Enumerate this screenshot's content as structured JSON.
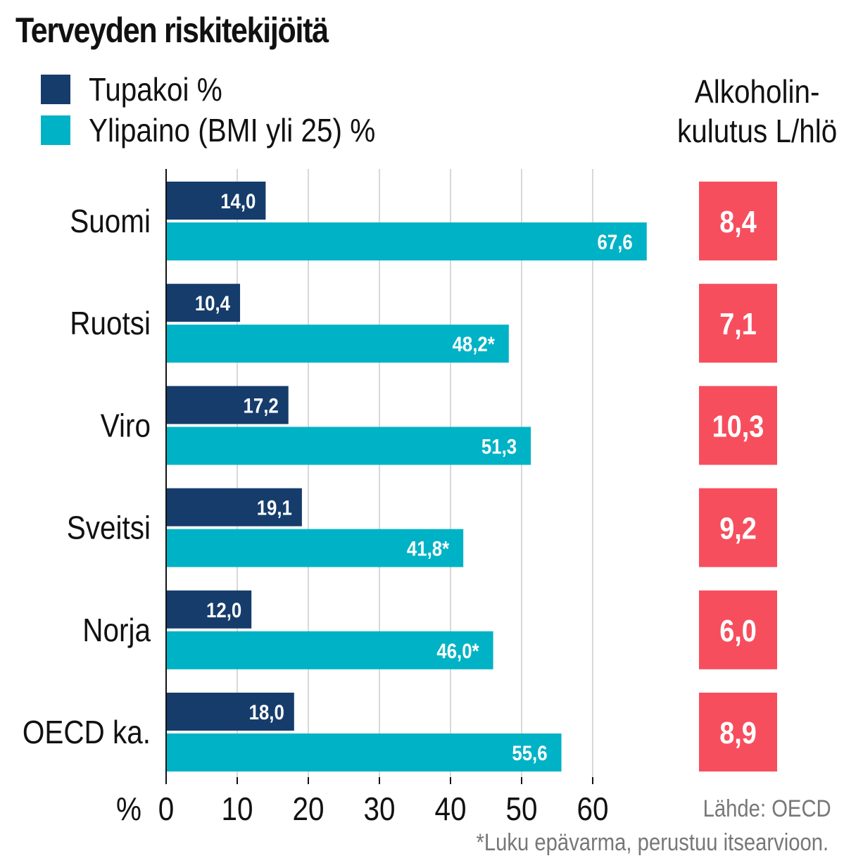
{
  "title": "Terveyden riskitekijöitä",
  "legend": [
    {
      "label": "Tupakoi %",
      "color": "#163c6b"
    },
    {
      "label": "Ylipaino (BMI yli 25) %",
      "color": "#00b2c5"
    }
  ],
  "alcohol_title": [
    "Alkoholin-",
    "kulutus L/hlö"
  ],
  "colors": {
    "smoke": "#163c6b",
    "overweight": "#00b2c5",
    "alcohol": "#f74e5d",
    "grid": "#cccccc",
    "axis": "#111111"
  },
  "chart_data": {
    "type": "bar",
    "orientation": "horizontal",
    "title": "Terveyden riskitekijöitä",
    "categories": [
      "Suomi",
      "Ruotsi",
      "Viro",
      "Sveitsi",
      "Norja",
      "OECD ka."
    ],
    "series": [
      {
        "name": "Tupakoi %",
        "values": [
          14.0,
          10.4,
          17.2,
          19.1,
          12.0,
          18.0
        ],
        "labels": [
          "14,0",
          "10,4",
          "17,2",
          "19,1",
          "12,0",
          "18,0"
        ]
      },
      {
        "name": "Ylipaino (BMI yli 25) %",
        "values": [
          67.6,
          48.2,
          51.3,
          41.8,
          46.0,
          55.6
        ],
        "labels": [
          "67,6",
          "48,2*",
          "51,3",
          "41,8*",
          "46,0*",
          "55,6"
        ]
      }
    ],
    "alcohol": {
      "name": "Alkoholinkulutus L/hlö",
      "values": [
        8.4,
        7.1,
        10.3,
        9.2,
        6.0,
        8.9
      ],
      "labels": [
        "8,4",
        "7,1",
        "10,3",
        "9,2",
        "6,0",
        "8,9"
      ]
    },
    "xlabel": "%",
    "xlim": [
      0,
      70
    ],
    "xticks": [
      0,
      10,
      20,
      30,
      40,
      50,
      60
    ],
    "xtick_labels": [
      "0",
      "10",
      "20",
      "30",
      "40",
      "50",
      "60"
    ],
    "grid": true
  },
  "source": "Lähde: OECD",
  "footnote": "*Luku epävarma, perustuu itsearvioon."
}
